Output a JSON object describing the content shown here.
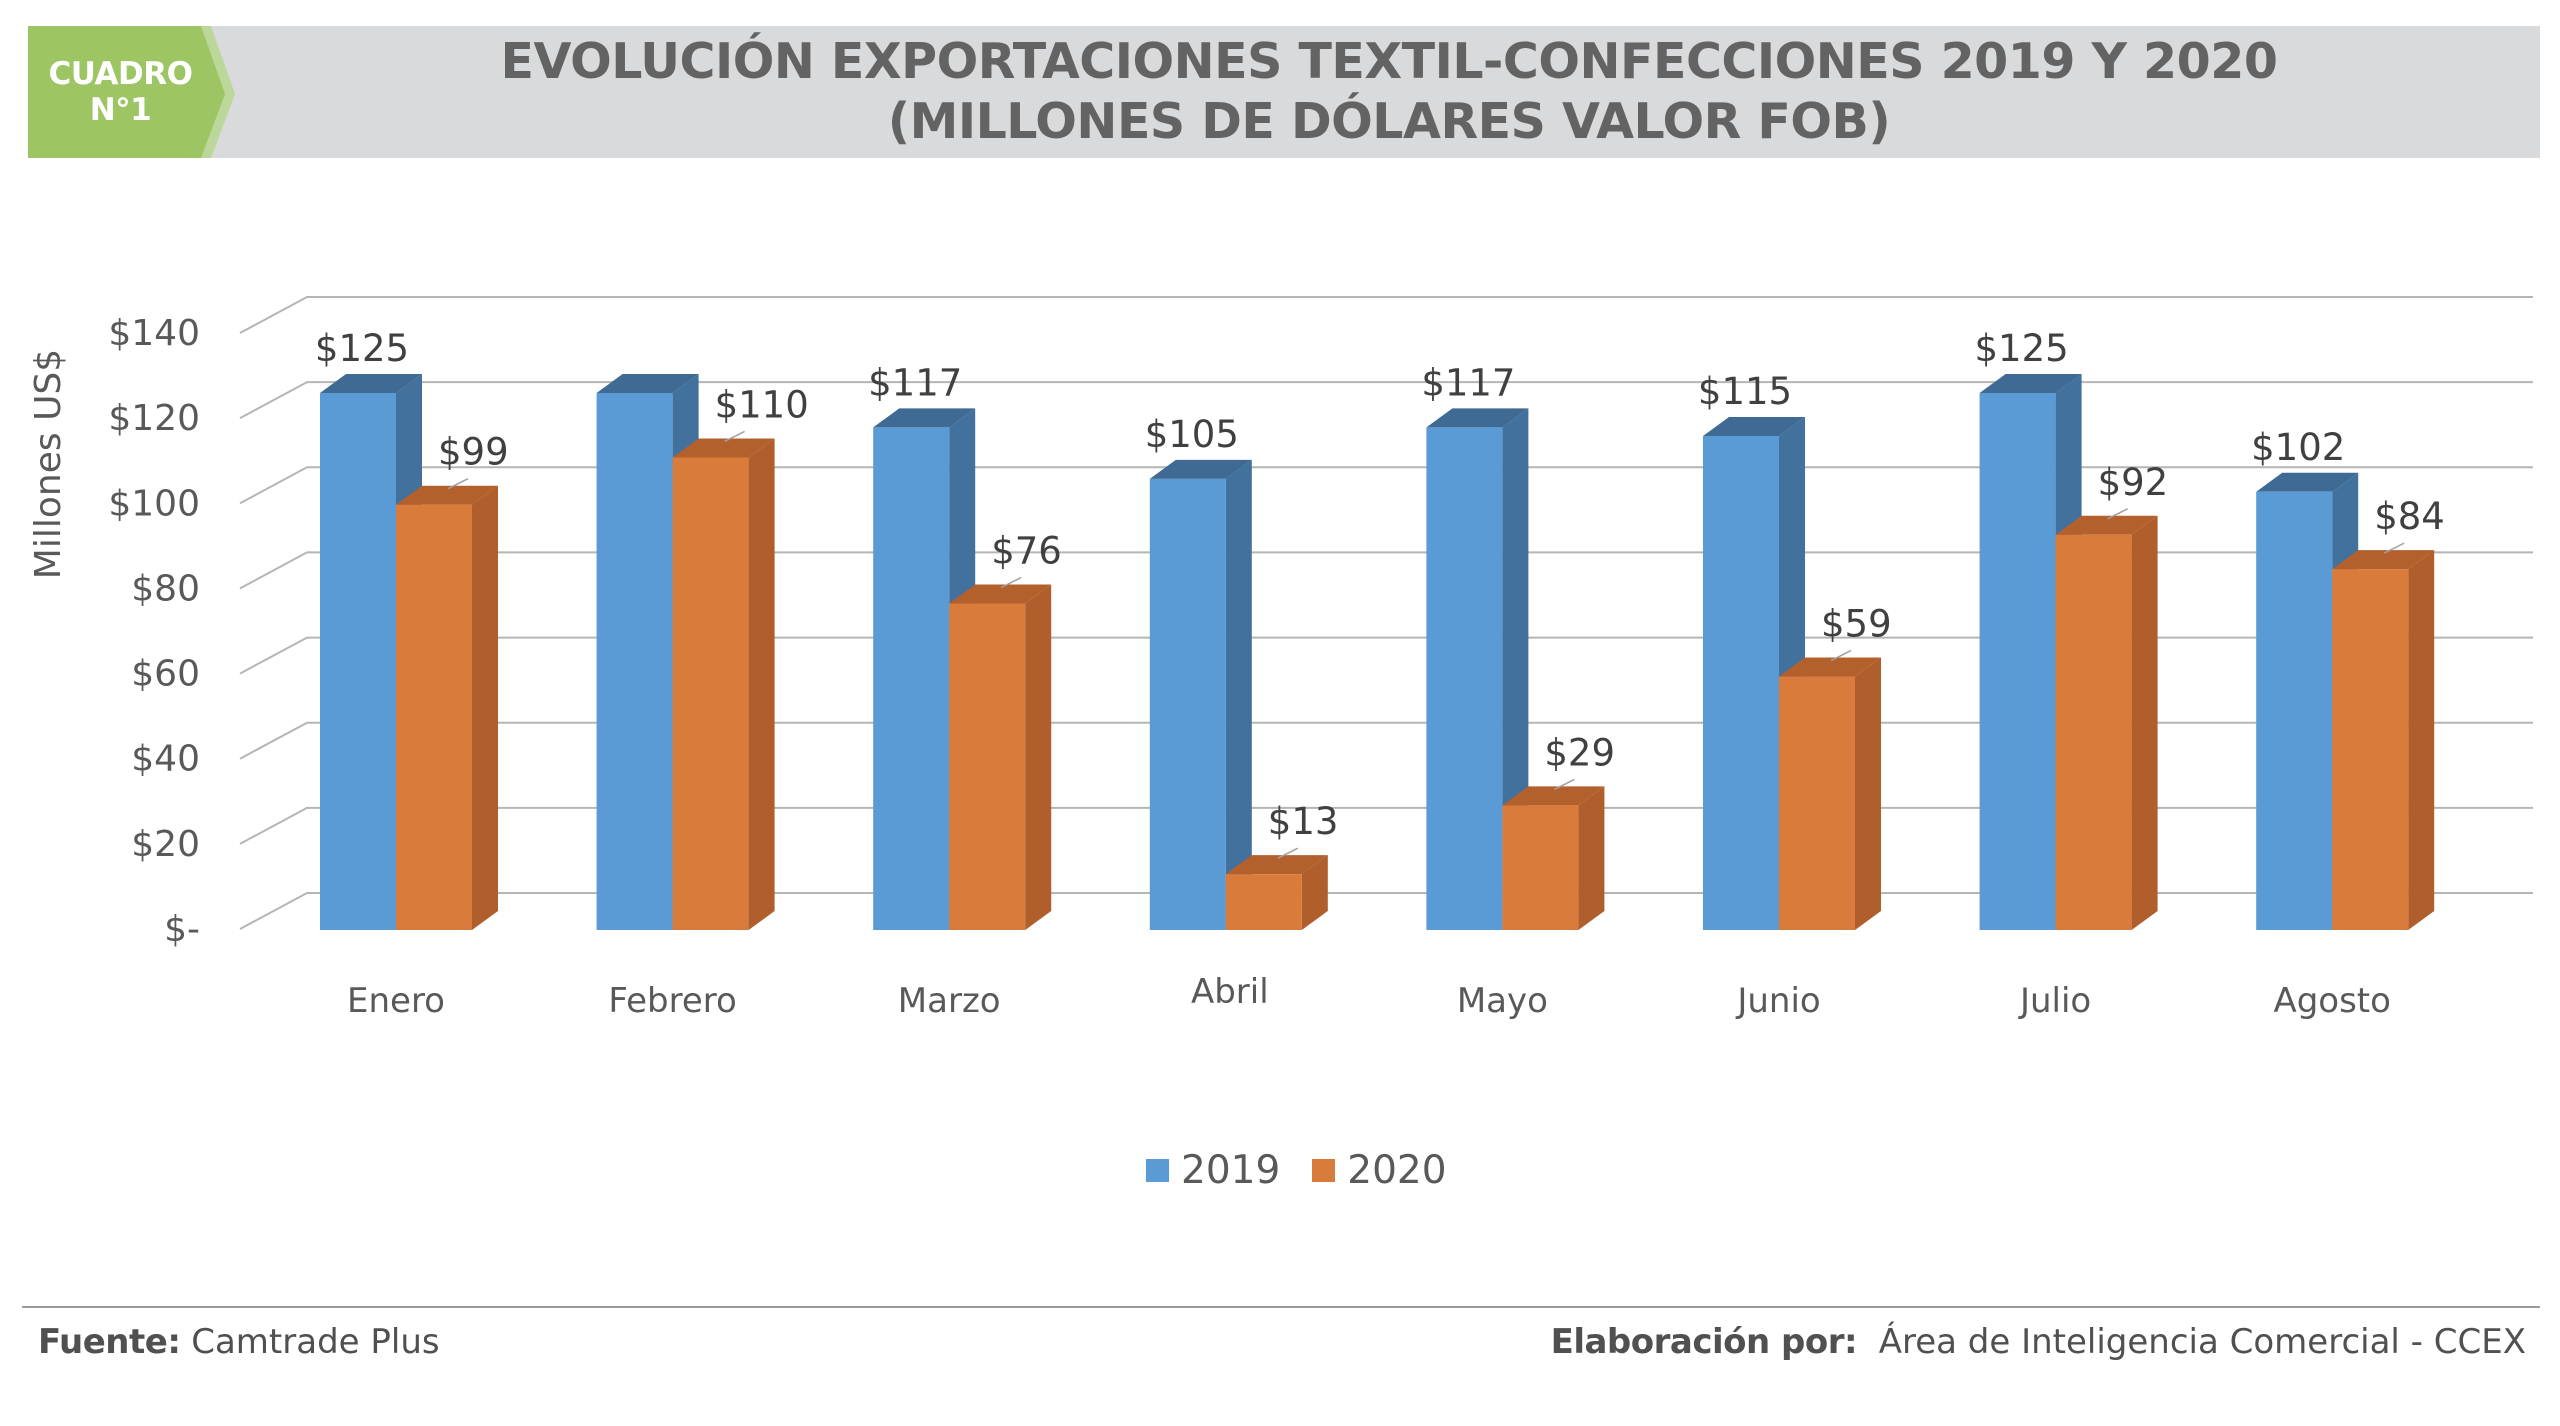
{
  "badge": {
    "line1": "CUADRO",
    "line2": "N°1"
  },
  "header": {
    "title_line1": "EVOLUCIÓN EXPORTACIONES TEXTIL-CONFECCIONES 2019 Y 2020",
    "title_line2": "(MILLONES DE DÓLARES VALOR FOB)"
  },
  "colors": {
    "header_bg": "#d9dadc",
    "badge_green": "#9dc564",
    "badge_stripe": "#bcd79a",
    "series_2019": "#5b9bd5",
    "series_2019_side": "#41719c",
    "series_2019_top": "#3f6a93",
    "series_2020": "#d97b3b",
    "series_2020_side": "#b05e2c",
    "series_2020_top": "#b3602d"
  },
  "chart_data": {
    "type": "bar",
    "style": "3d-clustered-column",
    "title": "EVOLUCIÓN EXPORTACIONES TEXTIL-CONFECCIONES 2019 Y 2020 (MILLONES DE DÓLARES VALOR FOB)",
    "xlabel": "",
    "ylabel": "Millones US$",
    "ylim": [
      0,
      140
    ],
    "ytick_values": [
      0,
      20,
      40,
      60,
      80,
      100,
      120,
      140
    ],
    "ytick_labels": [
      "$-",
      "$20",
      "$40",
      "$60",
      "$80",
      "$100",
      "$120",
      "$140"
    ],
    "categories": [
      "Enero",
      "Febrero",
      "Marzo",
      "Abril",
      "Mayo",
      "Junio",
      "Julio",
      "Agosto"
    ],
    "series": [
      {
        "name": "2019",
        "values": [
          125,
          125,
          117,
          105,
          117,
          115,
          125,
          102
        ],
        "labels": [
          "$125",
          "",
          "$117",
          "$105",
          "$117",
          "$115",
          "$125",
          "$102"
        ]
      },
      {
        "name": "2020",
        "values": [
          99,
          110,
          76,
          13,
          29,
          59,
          92,
          84
        ],
        "labels": [
          "$99",
          "$110",
          "$76",
          "$13",
          "$29",
          "$59",
          "$92",
          "$84"
        ]
      }
    ],
    "grid": true,
    "legend": "bottom-center"
  },
  "legend": {
    "items": [
      {
        "label": "2019"
      },
      {
        "label": "2020"
      }
    ]
  },
  "footer": {
    "source_label": "Fuente:",
    "source_value": "Camtrade Plus",
    "credit_label": "Elaboración por:",
    "credit_value": "Área de Inteligencia Comercial - CCEX"
  }
}
